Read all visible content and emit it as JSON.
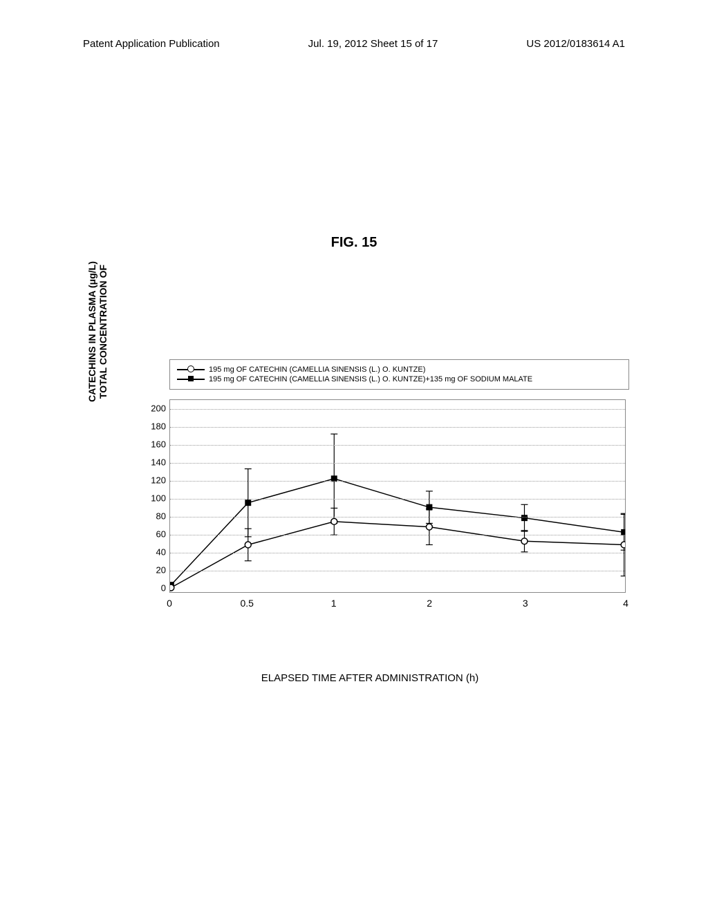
{
  "header": {
    "left": "Patent Application Publication",
    "center": "Jul. 19, 2012  Sheet 15 of 17",
    "right": "US 2012/0183614 A1"
  },
  "figure_title": "FIG. 15",
  "chart": {
    "type": "line",
    "y_axis_label_line1": "TOTAL CONCENTRATION OF",
    "y_axis_label_line2": "CATECHINS IN PLASMA (μg/L)",
    "x_axis_label": "ELAPSED TIME AFTER ADMINISTRATION (h)",
    "legend_item1": "195 mg OF CATECHIN (CAMELLIA SINENSIS (L.) O. KUNTZE)",
    "legend_item2": "195 mg OF CATECHIN (CAMELLIA SINENSIS (L.) O. KUNTZE)+135 mg OF SODIUM MALATE",
    "y_ticks": [
      0,
      20,
      40,
      60,
      80,
      100,
      120,
      140,
      160,
      180,
      200
    ],
    "x_ticks": [
      0,
      0.5,
      1,
      2,
      3,
      4
    ],
    "y_max": 210,
    "y_min": -5,
    "x_positions": [
      0,
      0.17,
      0.36,
      0.57,
      0.78,
      1.0
    ],
    "series1": {
      "name": "open-circle",
      "marker": "circle-open",
      "values": [
        0,
        48,
        74,
        68,
        52,
        48
      ],
      "error_bars": [
        0,
        18,
        15,
        20,
        12,
        35
      ]
    },
    "series2": {
      "name": "filled-square",
      "marker": "square-filled",
      "values": [
        3,
        95,
        122,
        90,
        78,
        62
      ],
      "error_bars": [
        0,
        38,
        50,
        18,
        15,
        20
      ]
    },
    "colors": {
      "line": "#000000",
      "grid": "#999999",
      "border": "#888888",
      "background": "#ffffff"
    },
    "line_width": 1.5,
    "marker_size": 9
  }
}
